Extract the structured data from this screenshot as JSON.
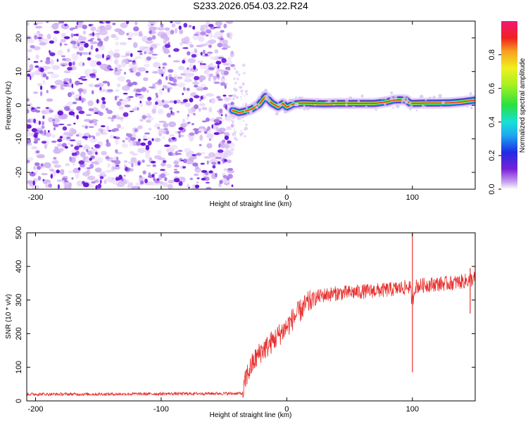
{
  "title": "S233.2026.054.03.22.R24",
  "chart_data": [
    {
      "type": "heatmap",
      "name": "spectrogram",
      "xlabel": "Height of straight line (km)",
      "ylabel": "Frequency (Hz)",
      "xlim": [
        -207,
        150
      ],
      "ylim": [
        -25,
        25
      ],
      "xticks": [
        -200,
        -100,
        0,
        100
      ],
      "yticks": [
        -20,
        -10,
        0,
        10,
        20
      ],
      "noise_region_x": [
        -207,
        -43
      ],
      "signal_onset_x": -43,
      "signal_trace": {
        "x": [
          -43,
          -38,
          -33,
          -28,
          -22,
          -17,
          -12,
          -7,
          -3,
          0,
          5,
          12,
          20,
          30,
          40,
          50,
          60,
          70,
          80,
          85,
          90,
          95,
          98,
          100,
          110,
          120,
          130,
          140,
          150
        ],
        "y": [
          -1.6,
          -2.2,
          -1.8,
          -1.2,
          0.2,
          2.6,
          0.6,
          -0.5,
          0.5,
          -0.6,
          0.3,
          0.6,
          0.5,
          0.4,
          0.5,
          0.5,
          0.5,
          0.5,
          1.0,
          1.5,
          1.6,
          1.5,
          0.6,
          0.5,
          0.6,
          0.6,
          0.7,
          1.0,
          1.5
        ]
      },
      "colorbar": {
        "label": "Normalized spectral amplitude",
        "range": [
          0.0,
          1.0
        ],
        "ticks": [
          0.0,
          0.2,
          0.4,
          0.6,
          0.8
        ]
      }
    },
    {
      "type": "line",
      "name": "snr",
      "xlabel": "Height of straight line (km)",
      "ylabel": "SNR (10 * v/v)",
      "xlim": [
        -207,
        150
      ],
      "ylim": [
        0,
        500
      ],
      "xticks": [
        -200,
        -100,
        0,
        100
      ],
      "yticks": [
        0,
        100,
        200,
        300,
        400,
        500
      ],
      "color": "#e8312f",
      "series": [
        {
          "name": "SNR",
          "x": [
            -207,
            -150,
            -100,
            -60,
            -35,
            -32,
            -28,
            -24,
            -20,
            -16,
            -12,
            -8,
            -4,
            0,
            5,
            10,
            15,
            20,
            25,
            30,
            40,
            50,
            60,
            70,
            80,
            90,
            98,
            100,
            102,
            110,
            120,
            130,
            140,
            146,
            150
          ],
          "values": [
            20,
            20,
            21,
            22,
            22,
            75,
            105,
            130,
            150,
            160,
            175,
            190,
            205,
            220,
            245,
            265,
            285,
            300,
            310,
            315,
            320,
            322,
            325,
            328,
            330,
            335,
            340,
            290,
            340,
            345,
            348,
            350,
            355,
            360,
            365
          ]
        }
      ],
      "spikes": [
        {
          "x": 100,
          "low": 85,
          "high": 500
        },
        {
          "x": 146,
          "low": 260,
          "high": 395
        }
      ]
    }
  ]
}
